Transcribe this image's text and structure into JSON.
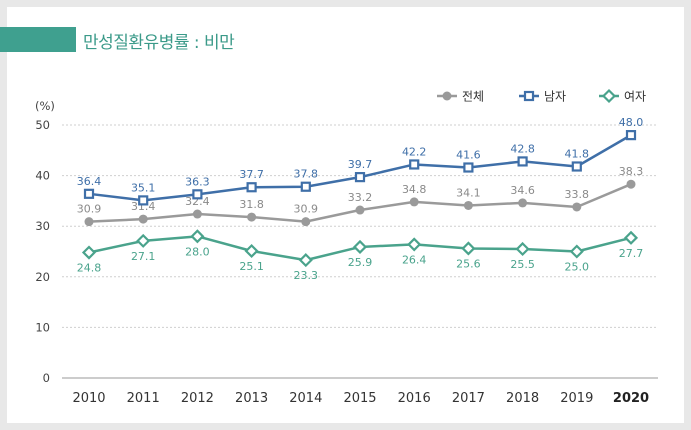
{
  "title": "만성질환유병률 : 비만",
  "chart_data": {
    "type": "line",
    "title": "만성질환유병률 : 비만",
    "ylabel": "(%)",
    "xlabel": "",
    "ylim": [
      0,
      50
    ],
    "yticks": [
      "0",
      "10",
      "20",
      "30",
      "40",
      "50"
    ],
    "categories": [
      "2010",
      "2011",
      "2012",
      "2013",
      "2014",
      "2015",
      "2016",
      "2017",
      "2018",
      "2019",
      "2020"
    ],
    "series": [
      {
        "name": "전체",
        "color": "#9a9a9a",
        "marker": "circle",
        "values": [
          30.9,
          31.4,
          32.4,
          31.8,
          30.9,
          33.2,
          34.8,
          34.1,
          34.6,
          33.8,
          38.3
        ],
        "labels": [
          "30.9",
          "31.4",
          "32.4",
          "31.8",
          "30.9",
          "33.2",
          "34.8",
          "34.1",
          "34.6",
          "33.8",
          "38.3"
        ]
      },
      {
        "name": "남자",
        "color": "#3f6fa8",
        "marker": "square",
        "values": [
          36.4,
          35.1,
          36.3,
          37.7,
          37.8,
          39.7,
          42.2,
          41.6,
          42.8,
          41.8,
          48.0
        ],
        "labels": [
          "36.4",
          "35.1",
          "36.3",
          "37.7",
          "37.8",
          "39.7",
          "42.2",
          "41.6",
          "42.8",
          "41.8",
          "48.0"
        ]
      },
      {
        "name": "여자",
        "color": "#4aa38c",
        "marker": "diamond",
        "values": [
          24.8,
          27.1,
          28.0,
          25.1,
          23.3,
          25.9,
          26.4,
          25.6,
          25.5,
          25.0,
          27.7
        ],
        "labels": [
          "24.8",
          "27.1",
          "28.0",
          "25.1",
          "23.3",
          "25.9",
          "26.4",
          "25.6",
          "25.5",
          "25.0",
          "27.7"
        ]
      }
    ],
    "legend": "top-right",
    "grid": true
  }
}
